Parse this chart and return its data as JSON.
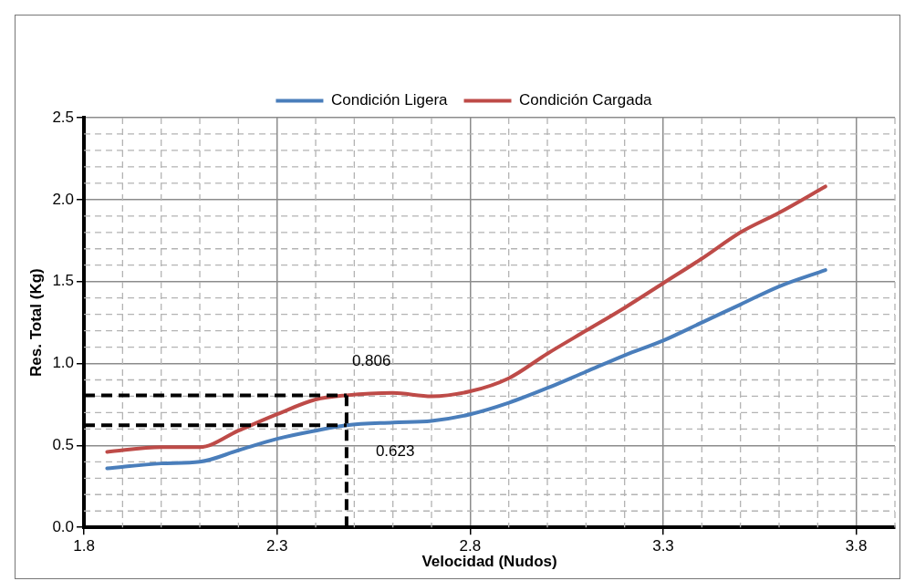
{
  "chart_data": {
    "type": "line",
    "xlabel": "Velocidad (Nudos)",
    "ylabel": "Res. Total (Kg)",
    "xlim": [
      1.8,
      3.9
    ],
    "xticks": [
      1.8,
      2.3,
      2.8,
      3.3,
      3.8
    ],
    "ylim": [
      0,
      2.5
    ],
    "yticks": [
      {
        "value": 0,
        "label": "0.0"
      },
      {
        "value": 0.5,
        "label": "0.5"
      },
      {
        "value": 1,
        "label": "1.0"
      },
      {
        "value": 1.5,
        "label": "1.5"
      },
      {
        "value": 2,
        "label": "2.0"
      },
      {
        "value": 2.5,
        "label": "2.5"
      }
    ],
    "grid": true,
    "legend": "top",
    "marker": "none",
    "line_style": "solid",
    "series": [
      {
        "name": "Condición Ligera",
        "color": "#4a7ebb",
        "x": [
          1.86,
          2.0,
          2.1,
          2.2,
          2.3,
          2.4,
          2.48,
          2.6,
          2.7,
          2.8,
          2.9,
          3.0,
          3.1,
          3.2,
          3.3,
          3.4,
          3.5,
          3.6,
          3.72
        ],
        "values": [
          0.36,
          0.39,
          0.4,
          0.47,
          0.54,
          0.59,
          0.623,
          0.64,
          0.65,
          0.69,
          0.76,
          0.85,
          0.95,
          1.05,
          1.14,
          1.25,
          1.36,
          1.47,
          1.57
        ]
      },
      {
        "name": "Condición Cargada",
        "color": "#be4b48",
        "x": [
          1.86,
          2.0,
          2.1,
          2.2,
          2.3,
          2.4,
          2.48,
          2.6,
          2.7,
          2.8,
          2.9,
          3.0,
          3.1,
          3.2,
          3.3,
          3.4,
          3.5,
          3.6,
          3.72
        ],
        "values": [
          0.46,
          0.49,
          0.49,
          0.59,
          0.69,
          0.78,
          0.806,
          0.82,
          0.8,
          0.83,
          0.91,
          1.06,
          1.2,
          1.34,
          1.49,
          1.64,
          1.8,
          1.92,
          2.08
        ]
      }
    ],
    "ref_lines": [
      {
        "axis": "y",
        "value": 0.806,
        "label": "0.806",
        "color": "#000000",
        "line_style": "dashed"
      },
      {
        "axis": "y",
        "value": 0.623,
        "label": "0.623",
        "color": "#000000",
        "line_style": "dashed"
      },
      {
        "axis": "x",
        "value": 2.48,
        "color": "#000000",
        "line_style": "dashed"
      }
    ]
  }
}
